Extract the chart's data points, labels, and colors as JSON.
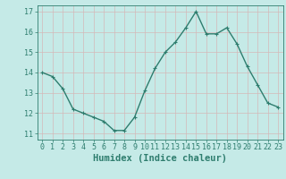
{
  "x": [
    0,
    1,
    2,
    3,
    4,
    5,
    6,
    7,
    8,
    9,
    10,
    11,
    12,
    13,
    14,
    15,
    16,
    17,
    18,
    19,
    20,
    21,
    22,
    23
  ],
  "y": [
    14.0,
    13.8,
    13.2,
    12.2,
    12.0,
    11.8,
    11.6,
    11.15,
    11.15,
    11.8,
    13.1,
    14.2,
    15.0,
    15.5,
    16.2,
    17.0,
    15.9,
    15.9,
    16.2,
    15.4,
    14.3,
    13.4,
    12.5,
    12.3
  ],
  "line_color": "#2e7d6e",
  "bg_color": "#c5eae7",
  "grid_color": "#d4b8b8",
  "xlabel": "Humidex (Indice chaleur)",
  "ylabel_ticks": [
    11,
    12,
    13,
    14,
    15,
    16,
    17
  ],
  "xlim": [
    -0.5,
    23.5
  ],
  "ylim": [
    10.7,
    17.3
  ],
  "marker": "+",
  "linewidth": 1.0,
  "markersize": 3.5,
  "tick_fontsize": 6,
  "xlabel_fontsize": 7.5
}
